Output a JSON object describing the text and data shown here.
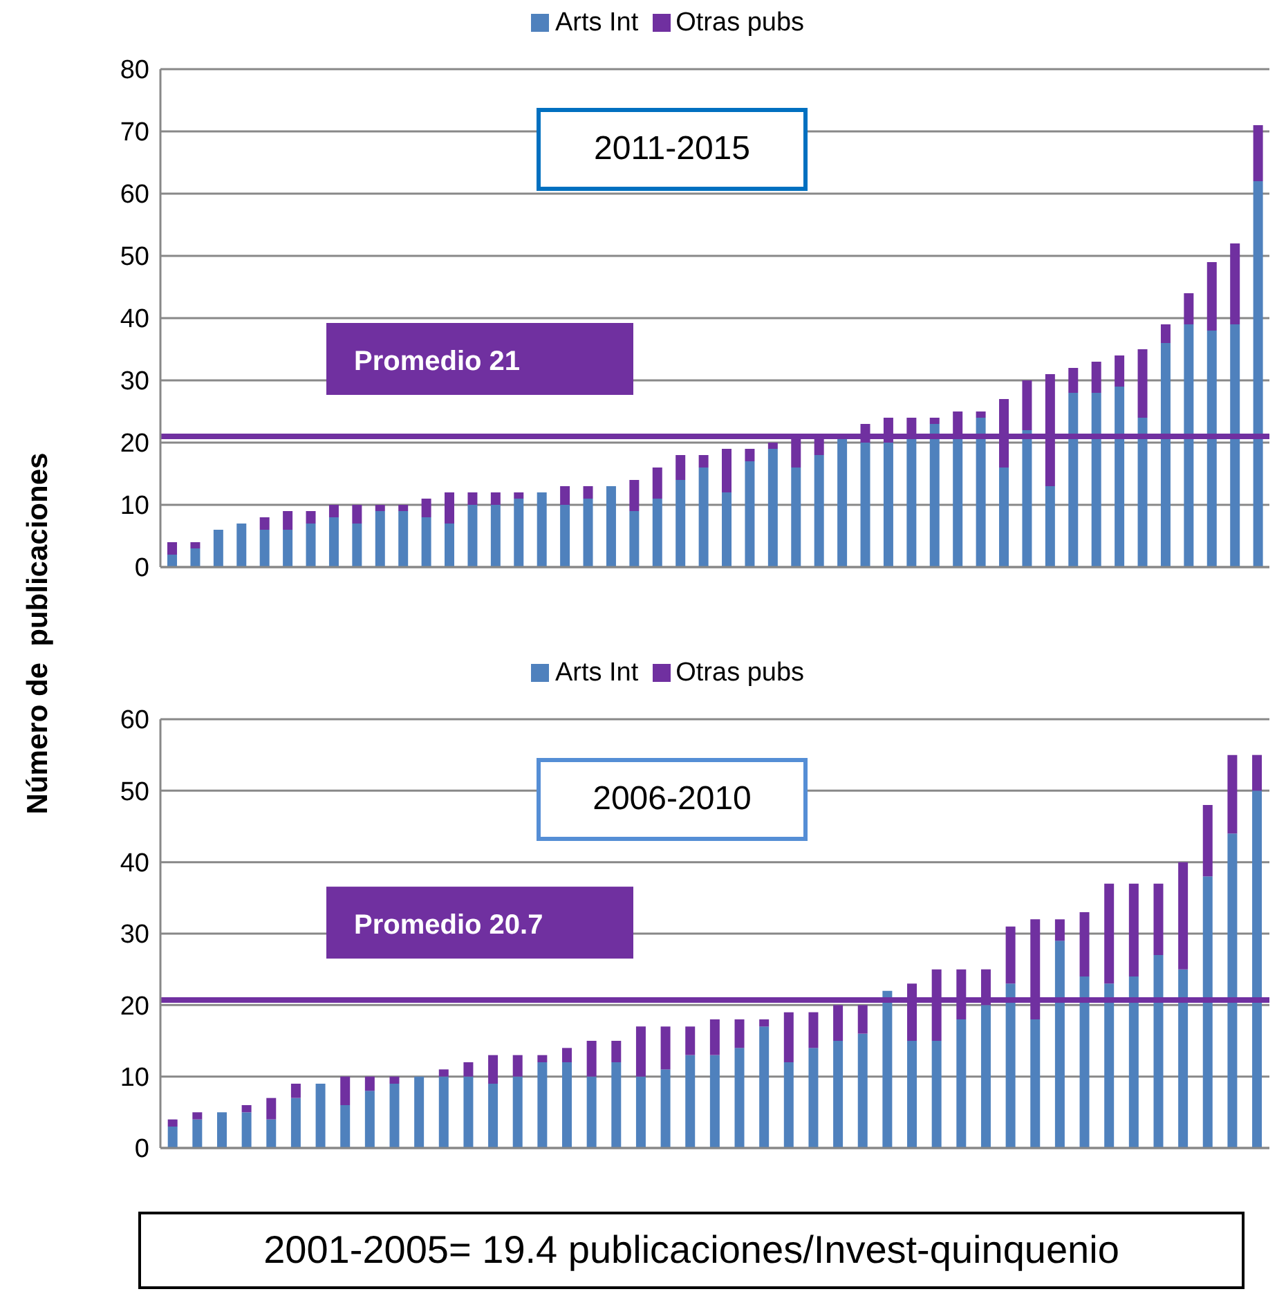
{
  "chart_data": [
    {
      "type": "bar",
      "title": "2011-2015",
      "ylabel": "Número de  publicaciones",
      "stacked": true,
      "legend": "top",
      "grid": "y",
      "tick_labels": "y",
      "ylim": [
        0,
        80
      ],
      "yticks": [
        0,
        10,
        20,
        30,
        40,
        50,
        60,
        70,
        80
      ],
      "categories": [
        null,
        null,
        null,
        null,
        null,
        null,
        null,
        null,
        null,
        null,
        null,
        null,
        null,
        null,
        null,
        null,
        null,
        null,
        null,
        null,
        null,
        null,
        null,
        null,
        null,
        null,
        null,
        null,
        null,
        null,
        null,
        null,
        null,
        null,
        null,
        null,
        null,
        null,
        null,
        null,
        null,
        null,
        null,
        null,
        null,
        null,
        null,
        null
      ],
      "series": [
        {
          "name": "Arts Int",
          "color": "#4f81bd",
          "values": [
            2,
            3,
            6,
            7,
            6,
            6,
            7,
            8,
            7,
            9,
            9,
            8,
            7,
            10,
            10,
            11,
            12,
            10,
            11,
            13,
            9,
            11,
            14,
            16,
            12,
            17,
            19,
            16,
            18,
            21,
            20,
            20,
            21,
            23,
            21,
            24,
            16,
            22,
            13,
            28,
            28,
            29,
            24,
            36,
            39,
            38,
            39,
            62
          ]
        },
        {
          "name": "Otras pubs",
          "color": "#7030a0",
          "values": [
            2,
            1,
            0,
            0,
            2,
            3,
            2,
            2,
            3,
            1,
            1,
            3,
            5,
            2,
            2,
            1,
            0,
            3,
            2,
            0,
            5,
            5,
            4,
            2,
            7,
            2,
            1,
            5,
            3,
            0,
            3,
            4,
            3,
            1,
            4,
            1,
            11,
            8,
            18,
            4,
            5,
            5,
            11,
            3,
            5,
            11,
            13,
            9
          ]
        }
      ],
      "ref_lines": [
        {
          "axis": "y",
          "value": 21,
          "label": "Promedio 21",
          "color": "#7030a0"
        }
      ]
    },
    {
      "type": "bar",
      "title": "2006-2010",
      "stacked": true,
      "legend": "top",
      "grid": "y",
      "tick_labels": "y",
      "ylim": [
        0,
        60
      ],
      "yticks": [
        0,
        10,
        20,
        30,
        40,
        50,
        60
      ],
      "categories": [
        null,
        null,
        null,
        null,
        null,
        null,
        null,
        null,
        null,
        null,
        null,
        null,
        null,
        null,
        null,
        null,
        null,
        null,
        null,
        null,
        null,
        null,
        null,
        null,
        null,
        null,
        null,
        null,
        null,
        null,
        null,
        null,
        null,
        null,
        null,
        null,
        null,
        null,
        null,
        null,
        null,
        null,
        null,
        null,
        null
      ],
      "series": [
        {
          "name": "Arts Int",
          "color": "#4f81bd",
          "values": [
            3,
            4,
            5,
            5,
            4,
            7,
            9,
            6,
            8,
            9,
            10,
            10,
            10,
            9,
            10,
            12,
            12,
            10,
            12,
            10,
            11,
            13,
            13,
            14,
            17,
            12,
            14,
            15,
            16,
            22,
            15,
            15,
            18,
            20,
            23,
            18,
            29,
            24,
            23,
            24,
            27,
            25,
            38,
            44,
            50
          ]
        },
        {
          "name": "Otras pubs",
          "color": "#7030a0",
          "values": [
            1,
            1,
            0,
            1,
            3,
            2,
            0,
            4,
            2,
            1,
            0,
            1,
            2,
            4,
            3,
            1,
            2,
            5,
            3,
            7,
            6,
            4,
            5,
            4,
            1,
            7,
            5,
            5,
            4,
            0,
            8,
            10,
            7,
            5,
            8,
            14,
            3,
            9,
            14,
            13,
            10,
            15,
            10,
            11,
            5
          ]
        }
      ],
      "ref_lines": [
        {
          "axis": "y",
          "value": 20.7,
          "label": "Promedio 20.7",
          "color": "#7030a0"
        }
      ],
      "annotations": [
        "2001-2005= 19.4 publicaciones/Invest-quinquenio"
      ]
    }
  ]
}
